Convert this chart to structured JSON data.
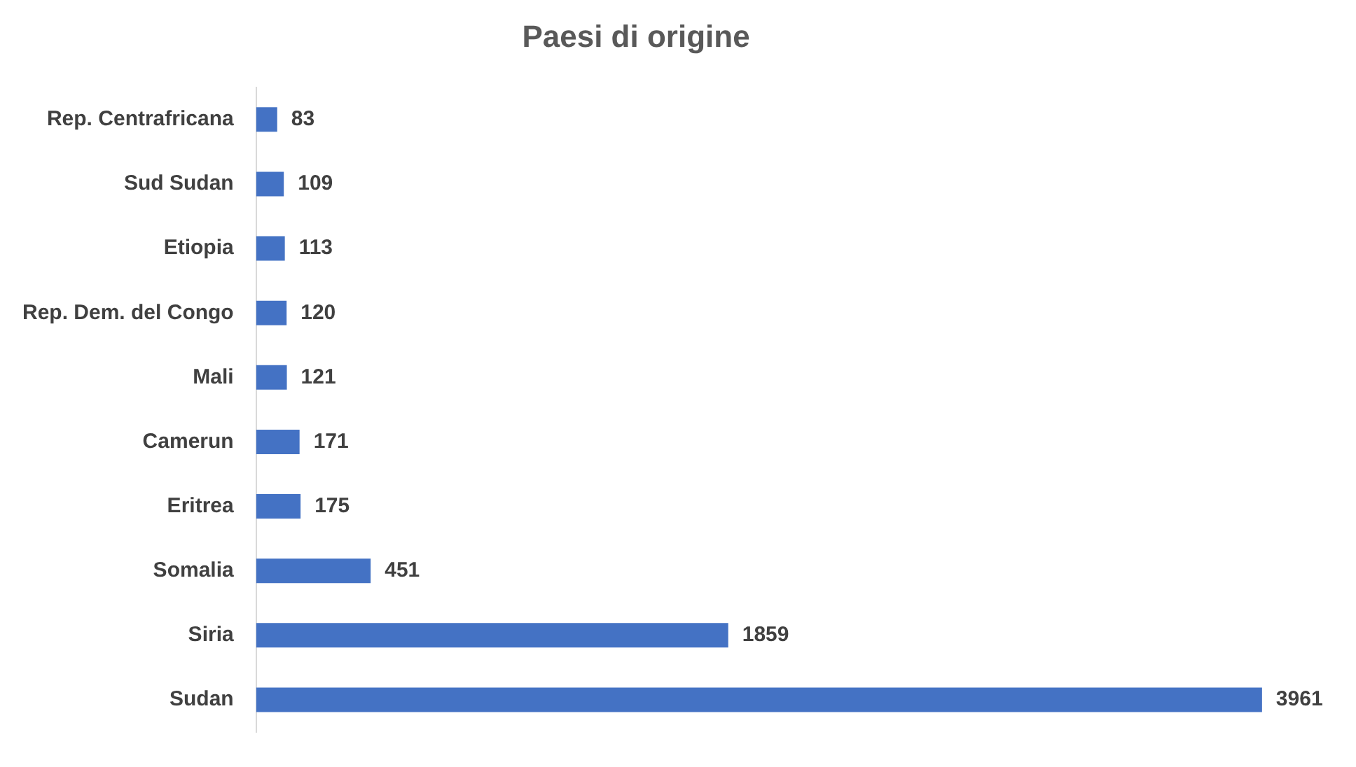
{
  "chart_data": {
    "type": "bar",
    "orientation": "horizontal",
    "title": "Paesi di origine",
    "categories": [
      "Rep. Centrafricana",
      "Sud Sudan",
      "Etiopia",
      "Rep. Dem. del Congo",
      "Mali",
      "Camerun",
      "Eritrea",
      "Somalia",
      "Siria",
      "Sudan"
    ],
    "values": [
      83,
      109,
      113,
      120,
      121,
      171,
      175,
      451,
      1859,
      3961
    ],
    "color": "#4472c4",
    "data_labels": true,
    "legend": false
  }
}
